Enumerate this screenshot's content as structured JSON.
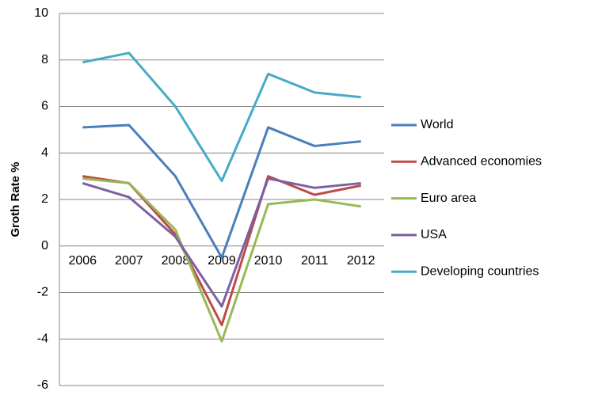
{
  "chart_data": {
    "type": "line",
    "y_label": "Groth Rate %",
    "categories": [
      "2006",
      "2007",
      "2008",
      "2009",
      "2010",
      "2011",
      "2012"
    ],
    "series": [
      {
        "name": "World",
        "color": "#4a7ebb",
        "values": [
          5.1,
          5.2,
          3.0,
          -0.5,
          5.1,
          4.3,
          4.5
        ]
      },
      {
        "name": "Advanced economies",
        "color": "#be4b48",
        "values": [
          3.0,
          2.7,
          0.5,
          -3.4,
          3.0,
          2.2,
          2.6
        ]
      },
      {
        "name": "Euro area",
        "color": "#98b954",
        "values": [
          2.9,
          2.7,
          0.7,
          -4.1,
          1.8,
          2.0,
          1.7
        ]
      },
      {
        "name": "USA",
        "color": "#7d60a0",
        "values": [
          2.7,
          2.1,
          0.4,
          -2.6,
          2.9,
          2.5,
          2.7
        ]
      },
      {
        "name": "Developing countries",
        "color": "#46aac5",
        "values": [
          7.9,
          8.3,
          6.0,
          2.8,
          7.4,
          6.6,
          6.4
        ]
      }
    ],
    "ylim": [
      -6,
      10
    ],
    "yticks": [
      -6,
      -4,
      -2,
      0,
      2,
      4,
      6,
      8,
      10
    ],
    "grid": true,
    "legend": "right"
  }
}
